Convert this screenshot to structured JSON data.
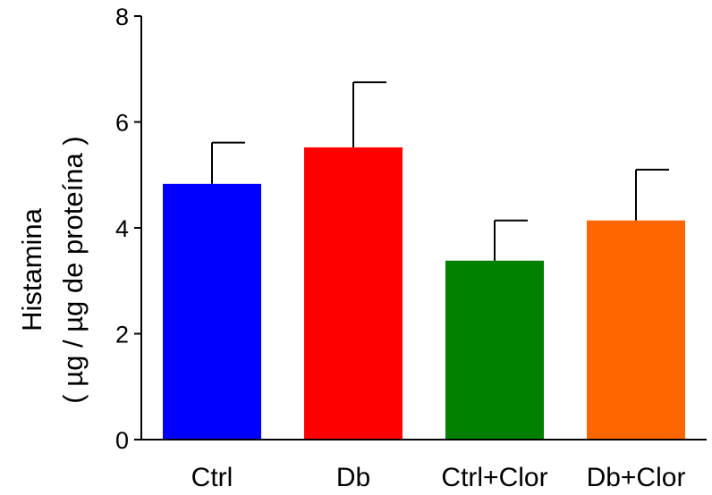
{
  "chart_data": {
    "type": "bar",
    "title": "",
    "xlabel": "",
    "ylabel": [
      "Histamina",
      "( µg / µg de proteína )"
    ],
    "ylim": [
      0,
      8
    ],
    "yticks": [
      0,
      2,
      4,
      6,
      8
    ],
    "categories": [
      "Ctrl",
      "Db",
      "Ctrl+Clor",
      "Db+Clor"
    ],
    "values": [
      4.83,
      5.52,
      3.38,
      4.14
    ],
    "errors": [
      0.78,
      1.23,
      0.76,
      0.96
    ],
    "colors": [
      "#0000ff",
      "#ff0000",
      "#007f00",
      "#ff6600"
    ],
    "grid": false,
    "legend": "none"
  }
}
